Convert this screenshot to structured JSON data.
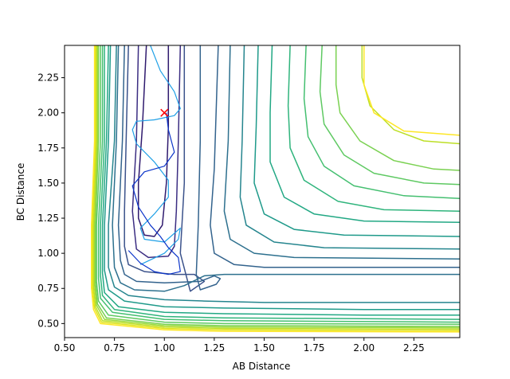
{
  "chart_data": {
    "type": "contour",
    "title": "",
    "xlabel": "AB Distance",
    "ylabel": "BC Distance",
    "xlim": [
      0.5,
      2.48
    ],
    "ylim": [
      0.4,
      2.48
    ],
    "xticks": [
      0.5,
      0.75,
      1.0,
      1.25,
      1.5,
      1.75,
      2.0,
      2.25
    ],
    "xtick_labels": [
      "0.50",
      "0.75",
      "1.00",
      "1.25",
      "1.50",
      "1.75",
      "2.00",
      "2.25"
    ],
    "yticks": [
      0.5,
      0.75,
      1.0,
      1.25,
      1.5,
      1.75,
      2.0,
      2.25
    ],
    "ytick_labels": [
      "0.50",
      "0.75",
      "1.00",
      "1.25",
      "1.50",
      "1.75",
      "2.00",
      "2.25"
    ],
    "grid": false,
    "colormap": "viridis",
    "contours": [
      {
        "color": "#2f1a6e",
        "points": [
          [
            0.91,
            2.48
          ],
          [
            0.89,
            1.9
          ],
          [
            0.87,
            1.5
          ],
          [
            0.87,
            1.25
          ],
          [
            0.9,
            1.13
          ],
          [
            0.95,
            1.12
          ],
          [
            0.99,
            1.2
          ],
          [
            1.01,
            1.5
          ],
          [
            1.02,
            1.9
          ],
          [
            1.02,
            2.48
          ]
        ]
      },
      {
        "color": "#3b2d82",
        "points": [
          [
            0.87,
            2.48
          ],
          [
            0.86,
            1.8
          ],
          [
            0.84,
            1.3
          ],
          [
            0.86,
            1.03
          ],
          [
            0.92,
            0.97
          ],
          [
            1.02,
            0.98
          ],
          [
            1.05,
            1.05
          ],
          [
            1.06,
            1.3
          ],
          [
            1.07,
            1.8
          ],
          [
            1.08,
            2.48
          ]
        ]
      },
      {
        "color": "#3b528b",
        "points": [
          [
            0.82,
            2.48
          ],
          [
            0.81,
            1.9
          ],
          [
            0.8,
            1.3
          ],
          [
            0.8,
            1.05
          ],
          [
            0.82,
            0.92
          ],
          [
            0.9,
            0.87
          ],
          [
            1.05,
            0.85
          ],
          [
            1.15,
            0.85
          ],
          [
            1.2,
            0.8
          ],
          [
            1.13,
            0.73
          ],
          [
            1.08,
            1.0
          ],
          [
            1.1,
            1.5
          ],
          [
            1.1,
            1.9
          ],
          [
            1.1,
            2.48
          ]
        ]
      },
      {
        "color": "#33638d",
        "points": [
          [
            0.8,
            2.48
          ],
          [
            0.79,
            1.8
          ],
          [
            0.77,
            1.2
          ],
          [
            0.78,
            0.95
          ],
          [
            0.8,
            0.85
          ],
          [
            0.86,
            0.8
          ],
          [
            1.0,
            0.79
          ],
          [
            1.18,
            0.8
          ],
          [
            1.25,
            0.84
          ],
          [
            1.28,
            0.82
          ],
          [
            1.26,
            0.78
          ],
          [
            1.18,
            0.74
          ],
          [
            1.16,
            0.85
          ],
          [
            1.17,
            1.2
          ],
          [
            1.18,
            1.8
          ],
          [
            1.18,
            2.48
          ]
        ]
      },
      {
        "color": "#2d708e",
        "points": [
          [
            0.77,
            2.48
          ],
          [
            0.76,
            1.8
          ],
          [
            0.74,
            1.2
          ],
          [
            0.75,
            0.9
          ],
          [
            0.78,
            0.79
          ],
          [
            0.85,
            0.74
          ],
          [
            1.0,
            0.73
          ],
          [
            1.1,
            0.77
          ],
          [
            1.2,
            0.84
          ],
          [
            1.3,
            0.85
          ],
          [
            1.5,
            0.85
          ],
          [
            2.0,
            0.85
          ],
          [
            2.48,
            0.85
          ]
        ]
      },
      {
        "color": "#25858e",
        "points": [
          [
            0.76,
            2.48
          ],
          [
            0.75,
            1.8
          ],
          [
            0.72,
            1.2
          ],
          [
            0.72,
            0.9
          ],
          [
            0.75,
            0.76
          ],
          [
            0.82,
            0.7
          ],
          [
            1.0,
            0.67
          ],
          [
            1.2,
            0.66
          ],
          [
            1.5,
            0.65
          ],
          [
            2.0,
            0.65
          ],
          [
            2.48,
            0.65
          ]
        ]
      },
      {
        "color": "#1f9a8a",
        "points": [
          [
            0.73,
            2.48
          ],
          [
            0.72,
            1.8
          ],
          [
            0.7,
            1.2
          ],
          [
            0.7,
            0.88
          ],
          [
            0.72,
            0.74
          ],
          [
            0.8,
            0.66
          ],
          [
            1.0,
            0.62
          ],
          [
            1.3,
            0.61
          ],
          [
            2.0,
            0.6
          ],
          [
            2.48,
            0.6
          ]
        ]
      },
      {
        "color": "#22a884",
        "points": [
          [
            0.72,
            2.48
          ],
          [
            0.71,
            1.8
          ],
          [
            0.69,
            1.2
          ],
          [
            0.69,
            0.86
          ],
          [
            0.7,
            0.72
          ],
          [
            0.77,
            0.62
          ],
          [
            1.0,
            0.58
          ],
          [
            1.3,
            0.57
          ],
          [
            2.0,
            0.56
          ],
          [
            2.48,
            0.56
          ]
        ]
      },
      {
        "color": "#2fb47c",
        "points": [
          [
            0.7,
            2.48
          ],
          [
            0.7,
            1.8
          ],
          [
            0.68,
            1.2
          ],
          [
            0.68,
            0.84
          ],
          [
            0.69,
            0.7
          ],
          [
            0.75,
            0.6
          ],
          [
            1.0,
            0.55
          ],
          [
            1.3,
            0.54
          ],
          [
            2.0,
            0.535
          ],
          [
            2.48,
            0.53
          ]
        ]
      },
      {
        "color": "#44bf70",
        "points": [
          [
            0.69,
            2.48
          ],
          [
            0.69,
            1.8
          ],
          [
            0.67,
            1.2
          ],
          [
            0.67,
            0.82
          ],
          [
            0.68,
            0.68
          ],
          [
            0.74,
            0.58
          ],
          [
            1.0,
            0.53
          ],
          [
            1.3,
            0.52
          ],
          [
            2.48,
            0.51
          ]
        ]
      },
      {
        "color": "#5ec962",
        "points": [
          [
            0.68,
            2.48
          ],
          [
            0.68,
            1.8
          ],
          [
            0.66,
            1.2
          ],
          [
            0.66,
            0.8
          ],
          [
            0.67,
            0.66
          ],
          [
            0.72,
            0.56
          ],
          [
            1.0,
            0.51
          ],
          [
            1.3,
            0.5
          ],
          [
            2.48,
            0.495
          ]
        ]
      },
      {
        "color": "#7ad151",
        "points": [
          [
            0.67,
            2.48
          ],
          [
            0.67,
            1.8
          ],
          [
            0.655,
            1.2
          ],
          [
            0.655,
            0.79
          ],
          [
            0.665,
            0.64
          ],
          [
            0.71,
            0.54
          ],
          [
            1.0,
            0.495
          ],
          [
            1.3,
            0.485
          ],
          [
            2.48,
            0.48
          ]
        ]
      },
      {
        "color": "#9bd93c",
        "points": [
          [
            0.665,
            2.48
          ],
          [
            0.665,
            1.8
          ],
          [
            0.65,
            1.2
          ],
          [
            0.65,
            0.78
          ],
          [
            0.66,
            0.63
          ],
          [
            0.7,
            0.53
          ],
          [
            1.0,
            0.485
          ],
          [
            1.3,
            0.475
          ],
          [
            2.48,
            0.47
          ]
        ]
      },
      {
        "color": "#bddf26",
        "points": [
          [
            0.66,
            2.48
          ],
          [
            0.66,
            1.8
          ],
          [
            0.645,
            1.2
          ],
          [
            0.645,
            0.77
          ],
          [
            0.655,
            0.62
          ],
          [
            0.69,
            0.52
          ],
          [
            1.0,
            0.475
          ],
          [
            1.3,
            0.465
          ],
          [
            2.48,
            0.46
          ]
        ]
      },
      {
        "color": "#dfe318",
        "points": [
          [
            0.655,
            2.48
          ],
          [
            0.655,
            1.8
          ],
          [
            0.64,
            1.2
          ],
          [
            0.64,
            0.76
          ],
          [
            0.65,
            0.61
          ],
          [
            0.685,
            0.51
          ],
          [
            1.0,
            0.465
          ],
          [
            1.3,
            0.455
          ],
          [
            2.48,
            0.45
          ]
        ]
      },
      {
        "color": "#fde725",
        "points": [
          [
            0.65,
            2.48
          ],
          [
            0.65,
            1.8
          ],
          [
            0.635,
            1.2
          ],
          [
            0.635,
            0.75
          ],
          [
            0.645,
            0.6
          ],
          [
            0.68,
            0.5
          ],
          [
            1.0,
            0.455
          ],
          [
            1.3,
            0.445
          ],
          [
            2.48,
            0.44
          ]
        ]
      },
      {
        "color": "#33638d",
        "points": [
          [
            1.27,
            2.48
          ],
          [
            1.25,
            1.6
          ],
          [
            1.23,
            1.2
          ],
          [
            1.25,
            1.0
          ],
          [
            1.35,
            0.92
          ],
          [
            1.5,
            0.9
          ],
          [
            2.48,
            0.9
          ]
        ]
      },
      {
        "color": "#2d708e",
        "points": [
          [
            1.33,
            2.48
          ],
          [
            1.32,
            1.8
          ],
          [
            1.3,
            1.3
          ],
          [
            1.33,
            1.1
          ],
          [
            1.45,
            1.0
          ],
          [
            1.65,
            0.97
          ],
          [
            2.48,
            0.96
          ]
        ]
      },
      {
        "color": "#25858e",
        "points": [
          [
            1.4,
            2.48
          ],
          [
            1.39,
            1.8
          ],
          [
            1.38,
            1.4
          ],
          [
            1.41,
            1.2
          ],
          [
            1.55,
            1.08
          ],
          [
            1.8,
            1.04
          ],
          [
            2.48,
            1.03
          ]
        ]
      },
      {
        "color": "#1f9a8a",
        "points": [
          [
            1.47,
            2.48
          ],
          [
            1.46,
            1.9
          ],
          [
            1.45,
            1.5
          ],
          [
            1.5,
            1.28
          ],
          [
            1.65,
            1.17
          ],
          [
            1.9,
            1.13
          ],
          [
            2.48,
            1.12
          ]
        ]
      },
      {
        "color": "#22a884",
        "points": [
          [
            1.54,
            2.48
          ],
          [
            1.53,
            2.0
          ],
          [
            1.53,
            1.65
          ],
          [
            1.6,
            1.4
          ],
          [
            1.75,
            1.28
          ],
          [
            2.0,
            1.23
          ],
          [
            2.48,
            1.22
          ]
        ]
      },
      {
        "color": "#2fb47c",
        "points": [
          [
            1.63,
            2.48
          ],
          [
            1.62,
            2.05
          ],
          [
            1.63,
            1.75
          ],
          [
            1.7,
            1.52
          ],
          [
            1.87,
            1.37
          ],
          [
            2.1,
            1.31
          ],
          [
            2.48,
            1.3
          ]
        ]
      },
      {
        "color": "#44bf70",
        "points": [
          [
            1.71,
            2.48
          ],
          [
            1.7,
            2.1
          ],
          [
            1.72,
            1.83
          ],
          [
            1.8,
            1.62
          ],
          [
            1.95,
            1.48
          ],
          [
            2.2,
            1.41
          ],
          [
            2.48,
            1.39
          ]
        ]
      },
      {
        "color": "#5ec962",
        "points": [
          [
            1.79,
            2.48
          ],
          [
            1.78,
            2.15
          ],
          [
            1.8,
            1.92
          ],
          [
            1.9,
            1.7
          ],
          [
            2.05,
            1.57
          ],
          [
            2.3,
            1.5
          ],
          [
            2.48,
            1.49
          ]
        ]
      },
      {
        "color": "#7ad151",
        "points": [
          [
            1.86,
            2.48
          ],
          [
            1.86,
            2.2
          ],
          [
            1.88,
            2.0
          ],
          [
            1.98,
            1.8
          ],
          [
            2.15,
            1.66
          ],
          [
            2.35,
            1.6
          ],
          [
            2.48,
            1.59
          ]
        ]
      },
      {
        "color": "#bddf26",
        "points": [
          [
            1.99,
            2.48
          ],
          [
            1.99,
            2.25
          ],
          [
            2.03,
            2.05
          ],
          [
            2.15,
            1.88
          ],
          [
            2.3,
            1.8
          ],
          [
            2.48,
            1.78
          ]
        ]
      },
      {
        "color": "#fde725",
        "points": [
          [
            2.0,
            2.48
          ],
          [
            2.0,
            2.2
          ],
          [
            2.05,
            2.0
          ],
          [
            2.2,
            1.87
          ],
          [
            2.48,
            1.84
          ]
        ]
      }
    ],
    "trajectory": [
      {
        "color": "#1fa0e6",
        "points": [
          [
            0.93,
            2.48
          ],
          [
            0.98,
            2.3
          ],
          [
            1.05,
            2.15
          ],
          [
            1.08,
            2.03
          ],
          [
            1.05,
            1.98
          ],
          [
            0.95,
            1.95
          ],
          [
            0.86,
            1.94
          ],
          [
            0.84,
            1.88
          ],
          [
            0.86,
            1.78
          ],
          [
            0.95,
            1.65
          ],
          [
            1.02,
            1.52
          ],
          [
            1.02,
            1.4
          ],
          [
            0.95,
            1.28
          ],
          [
            0.88,
            1.18
          ],
          [
            0.9,
            1.1
          ],
          [
            1.0,
            1.08
          ],
          [
            1.08,
            1.18
          ],
          [
            1.07,
            1.1
          ],
          [
            1.0,
            1.0
          ],
          [
            0.88,
            0.92
          ]
        ]
      },
      {
        "color": "#0b34c9",
        "points": [
          [
            1.01,
            2.0
          ],
          [
            1.02,
            1.88
          ],
          [
            1.05,
            1.72
          ],
          [
            1.0,
            1.62
          ],
          [
            0.9,
            1.58
          ],
          [
            0.84,
            1.48
          ],
          [
            0.87,
            1.33
          ],
          [
            0.93,
            1.2
          ],
          [
            0.98,
            1.12
          ],
          [
            1.02,
            1.04
          ],
          [
            1.07,
            0.97
          ],
          [
            1.08,
            0.87
          ],
          [
            1.02,
            0.85
          ],
          [
            0.95,
            0.87
          ],
          [
            0.88,
            0.93
          ],
          [
            0.82,
            1.02
          ]
        ]
      }
    ],
    "markers": [
      {
        "label": "×",
        "x": 1.0,
        "y": 2.0,
        "color": "#ff0000"
      }
    ]
  }
}
